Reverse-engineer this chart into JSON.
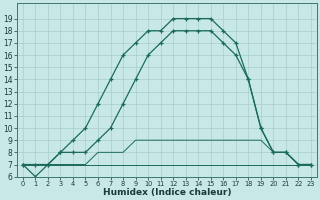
{
  "xlabel": "Humidex (Indice chaleur)",
  "x": [
    0,
    1,
    2,
    3,
    4,
    5,
    6,
    7,
    8,
    9,
    10,
    11,
    12,
    13,
    14,
    15,
    16,
    17,
    18,
    19,
    20,
    21,
    22,
    23
  ],
  "line1": [
    7,
    6,
    7,
    8,
    9,
    10,
    12,
    14,
    16,
    17,
    18,
    18,
    19,
    19,
    19,
    19,
    18,
    17,
    14,
    10,
    8,
    8,
    7,
    7
  ],
  "line2": [
    7,
    7,
    7,
    8,
    8,
    8,
    9,
    10,
    12,
    14,
    16,
    17,
    18,
    18,
    18,
    18,
    17,
    16,
    14,
    10,
    8,
    8,
    7,
    7
  ],
  "line3": [
    7,
    7,
    7,
    7,
    7,
    7,
    8,
    8,
    8,
    9,
    9,
    9,
    9,
    9,
    9,
    9,
    9,
    9,
    9,
    9,
    8,
    8,
    7,
    7
  ],
  "line4": [
    7,
    7,
    7,
    7,
    7,
    7,
    7,
    7,
    7,
    7,
    7,
    7,
    7,
    7,
    7,
    7,
    7,
    7,
    7,
    7,
    7,
    7,
    7,
    7
  ],
  "ylim_min": 6,
  "ylim_max": 20,
  "xlim_min": 0,
  "xlim_max": 23,
  "yticks": [
    6,
    7,
    8,
    9,
    10,
    11,
    12,
    13,
    14,
    15,
    16,
    17,
    18,
    19
  ],
  "xticks": [
    0,
    1,
    2,
    3,
    4,
    5,
    6,
    7,
    8,
    9,
    10,
    11,
    12,
    13,
    14,
    15,
    16,
    17,
    18,
    19,
    20,
    21,
    22,
    23
  ],
  "bg_color": "#c8e8e8",
  "line_color": "#1a6b5a",
  "grid_color": "#a8cece",
  "tick_color": "#1a3a3a",
  "xlabel_fontsize": 6.5,
  "ytick_fontsize": 5.5,
  "xtick_fontsize": 4.8
}
